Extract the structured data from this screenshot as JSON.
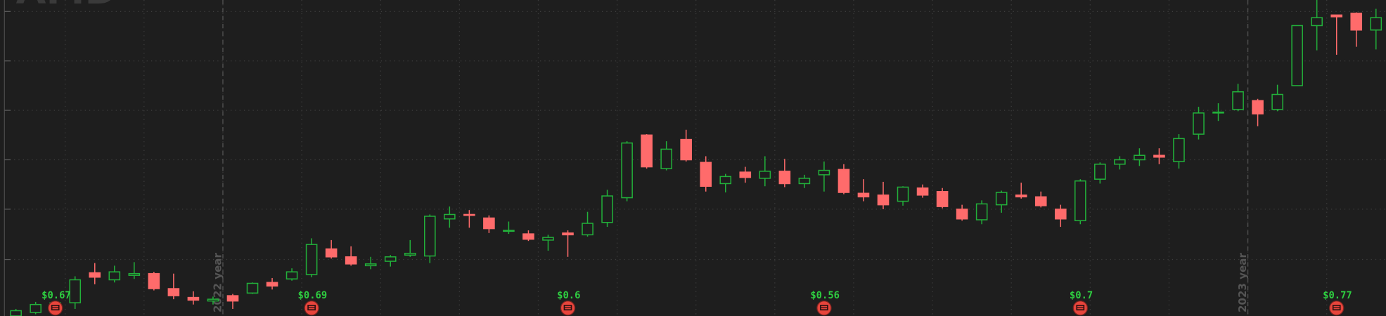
{
  "chart_data": {
    "type": "candlestick",
    "logo": "AMD",
    "ylim": [
      0,
      358
    ],
    "yticks": [
      64,
      121,
      177,
      233,
      289,
      345
    ],
    "grid": true,
    "up_color": "#22b03a",
    "down_color": "#ff6b6b",
    "open": [
      0,
      4,
      8,
      15,
      49,
      41,
      46,
      48,
      31,
      21,
      17,
      23,
      26,
      38,
      42,
      47,
      76,
      67,
      57,
      62,
      69,
      68,
      110,
      115,
      111,
      96,
      93,
      86,
      94,
      92,
      106,
      134,
      205,
      167,
      200,
      174,
      150,
      163,
      156,
      164,
      150,
      160,
      166,
      139,
      137,
      130,
      145,
      141,
      121,
      109,
      126,
      137,
      135,
      121,
      108,
      155,
      172,
      177,
      182,
      175,
      206,
      230,
      234,
      244,
      234,
      261,
      329,
      341,
      343,
      324
    ],
    "high": [
      8,
      16,
      17,
      45,
      60,
      57,
      61,
      50,
      48,
      28,
      22,
      25,
      38,
      43,
      54,
      88,
      86,
      79,
      67,
      69,
      86,
      115,
      124,
      120,
      114,
      107,
      97,
      92,
      97,
      118,
      143,
      198,
      206,
      198,
      211,
      181,
      161,
      169,
      181,
      178,
      160,
      175,
      172,
      155,
      152,
      147,
      149,
      145,
      126,
      131,
      142,
      151,
      141,
      126,
      155,
      174,
      181,
      190,
      190,
      206,
      237,
      241,
      263,
      246,
      262,
      329,
      358,
      341,
      344,
      348
    ],
    "low": [
      0,
      2,
      6,
      8,
      36,
      38,
      42,
      29,
      19,
      13,
      13,
      8,
      25,
      30,
      40,
      44,
      65,
      57,
      53,
      56,
      67,
      60,
      100,
      100,
      94,
      93,
      85,
      74,
      67,
      90,
      101,
      130,
      167,
      165,
      175,
      141,
      140,
      151,
      147,
      146,
      145,
      141,
      138,
      130,
      121,
      125,
      134,
      122,
      108,
      104,
      117,
      133,
      123,
      101,
      104,
      150,
      166,
      170,
      172,
      167,
      200,
      221,
      232,
      215,
      232,
      261,
      301,
      296,
      305,
      302
    ],
    "close": [
      6,
      13,
      15,
      41,
      44,
      50,
      48,
      31,
      23,
      18,
      19,
      17,
      37,
      34,
      50,
      81,
      67,
      59,
      59,
      67,
      71,
      113,
      115,
      114,
      99,
      97,
      87,
      89,
      92,
      105,
      136,
      196,
      169,
      189,
      177,
      147,
      158,
      157,
      164,
      150,
      156,
      165,
      140,
      135,
      126,
      146,
      137,
      124,
      110,
      127,
      140,
      135,
      125,
      110,
      153,
      172,
      177,
      182,
      180,
      201,
      230,
      231,
      254,
      229,
      251,
      329,
      338,
      339,
      324,
      338
    ],
    "dividends": {
      "values": [
        null,
        null,
        0.67,
        null,
        null,
        null,
        null,
        null,
        null,
        null,
        null,
        null,
        null,
        null,
        null,
        0.69,
        null,
        null,
        null,
        null,
        null,
        null,
        null,
        null,
        null,
        null,
        null,
        null,
        0.6,
        null,
        null,
        null,
        null,
        null,
        null,
        null,
        null,
        null,
        null,
        null,
        null,
        0.56,
        null,
        null,
        null,
        null,
        null,
        null,
        null,
        null,
        null,
        null,
        null,
        null,
        0.7,
        null,
        null,
        null,
        null,
        null,
        null,
        null,
        null,
        null,
        null,
        null,
        null,
        0.77,
        null,
        null
      ],
      "value_labels": [
        null,
        null,
        "$0.67",
        null,
        null,
        null,
        null,
        null,
        null,
        null,
        null,
        null,
        null,
        null,
        null,
        "$0.69",
        null,
        null,
        null,
        null,
        null,
        null,
        null,
        null,
        null,
        null,
        null,
        null,
        "$0.6",
        null,
        null,
        null,
        null,
        null,
        null,
        null,
        null,
        null,
        null,
        null,
        null,
        "$0.56",
        null,
        null,
        null,
        null,
        null,
        null,
        null,
        null,
        null,
        null,
        null,
        null,
        "$0.7",
        null,
        null,
        null,
        null,
        null,
        null,
        null,
        null,
        null,
        null,
        null,
        null,
        "$0.77",
        null,
        null
      ]
    },
    "year_markers": [
      null,
      null,
      null,
      null,
      null,
      null,
      null,
      null,
      null,
      null,
      null,
      "2022 year",
      null,
      null,
      null,
      null,
      null,
      null,
      null,
      null,
      null,
      null,
      null,
      null,
      null,
      null,
      null,
      null,
      null,
      null,
      null,
      null,
      null,
      null,
      null,
      null,
      null,
      null,
      null,
      null,
      null,
      null,
      null,
      null,
      null,
      null,
      null,
      null,
      null,
      null,
      null,
      null,
      null,
      null,
      null,
      null,
      null,
      null,
      null,
      null,
      null,
      null,
      null,
      "2023 year",
      null,
      null,
      null,
      null,
      null,
      null
    ]
  }
}
